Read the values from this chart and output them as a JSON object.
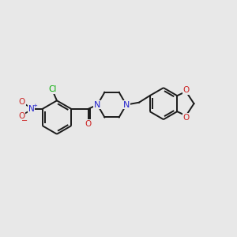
{
  "background_color": "#e8e8e8",
  "bond_color": "#1a1a1a",
  "bond_width": 1.4,
  "atom_colors": {
    "N": "#2222cc",
    "O": "#cc2222",
    "Cl": "#00aa00"
  },
  "figsize": [
    3.0,
    3.0
  ],
  "dpi": 100,
  "xlim": [
    0,
    10
  ],
  "ylim": [
    2,
    8
  ]
}
